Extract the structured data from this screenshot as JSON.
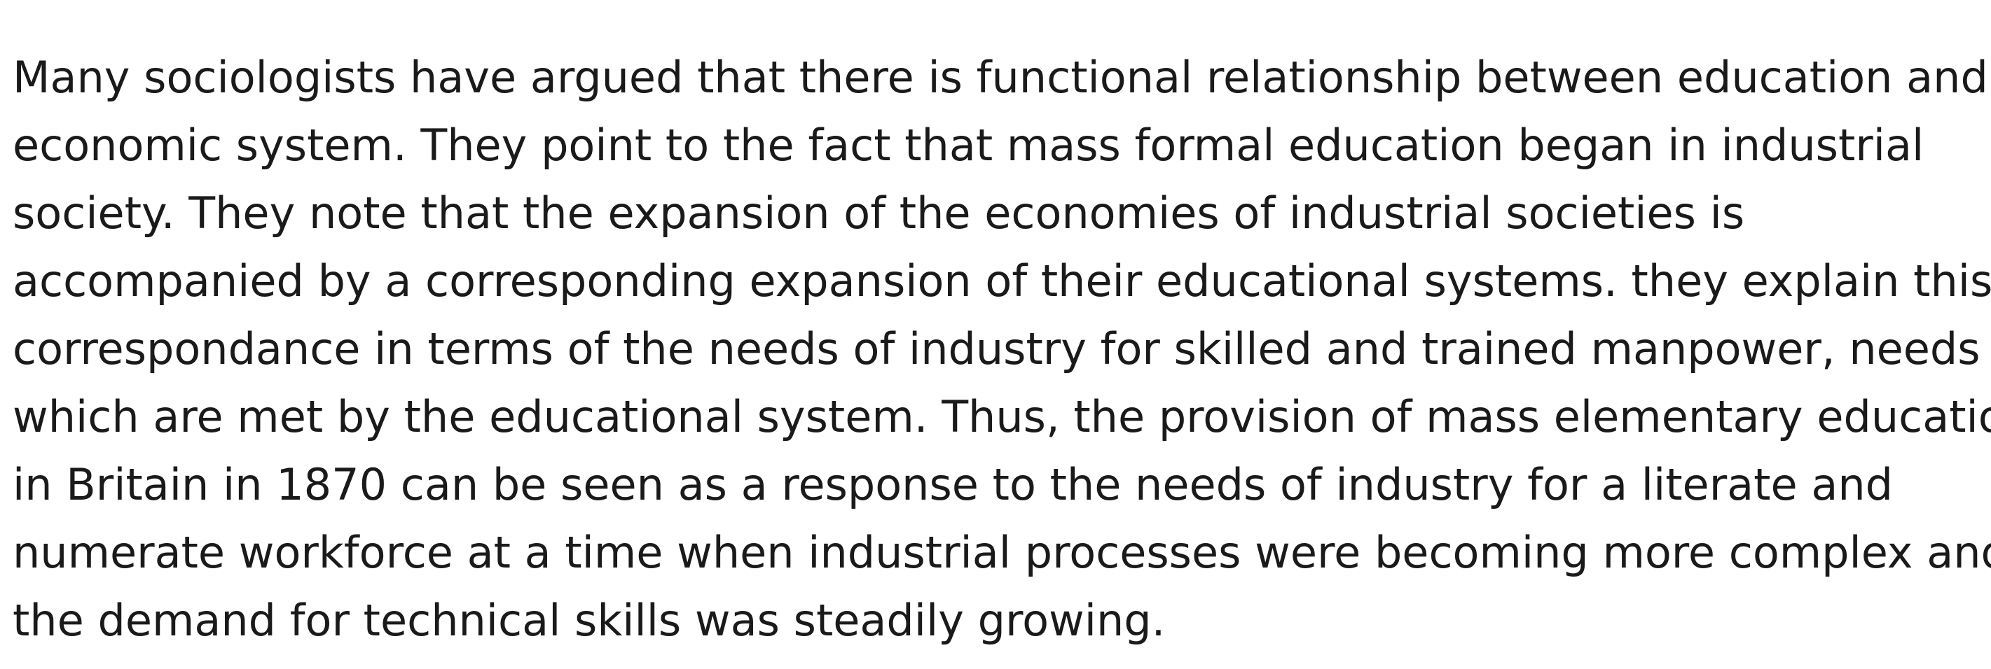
{
  "paragraph": {
    "lines": [
      "Many sociologists have argued that there is functional relationship between education and",
      "economic system. They point to the fact that mass formal education began in industrial",
      "society. They note that the expansion of the economies of industrial societies is",
      "accompanied by a corresponding expansion of their educational systems. they explain this",
      "correspondance in terms of the needs of industry for skilled and trained manpower, needs",
      "which are met by the educational system. Thus, the provision of mass elementary education",
      "in Britain in 1870 can be seen as a response to the needs of industry for a literate and",
      "numerate workforce at a time when industrial processes were becoming more complex and",
      "the demand for technical skills was steadily growing."
    ]
  },
  "colors": {
    "background": "#ffffff",
    "text": "#1a1a1a"
  }
}
